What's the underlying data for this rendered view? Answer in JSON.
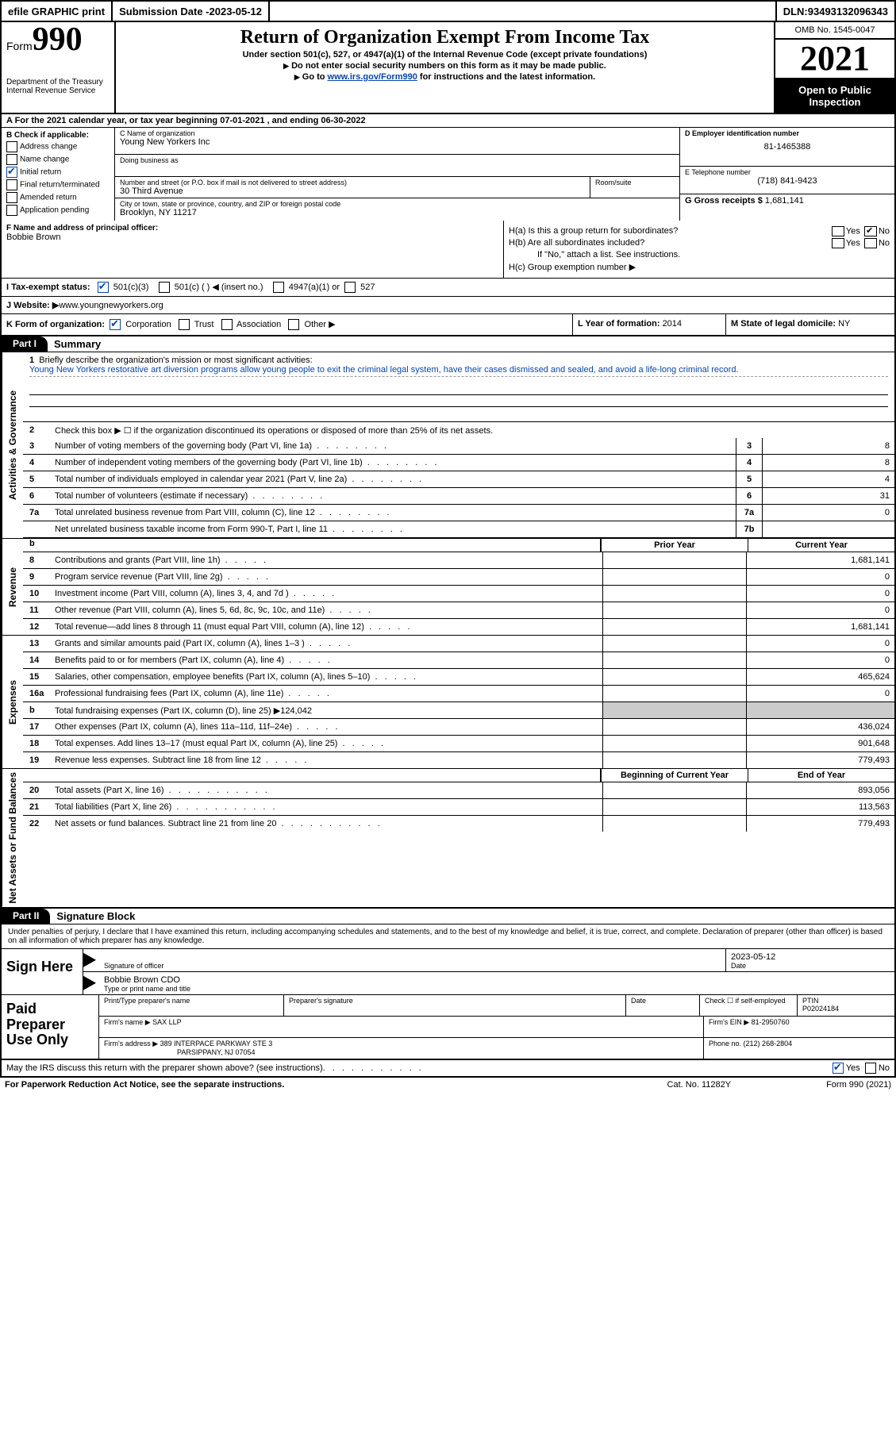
{
  "topbar": {
    "efile": "efile GRAPHIC print",
    "submission_label": "Submission Date - ",
    "submission_date": "2023-05-12",
    "dln_label": "DLN: ",
    "dln": "93493132096343"
  },
  "header": {
    "form_prefix": "Form",
    "form_number": "990",
    "dept": "Department of the Treasury",
    "irs": "Internal Revenue Service",
    "title": "Return of Organization Exempt From Income Tax",
    "subtitle": "Under section 501(c), 527, or 4947(a)(1) of the Internal Revenue Code (except private foundations)",
    "note1": "Do not enter social security numbers on this form as it may be made public.",
    "note2_prefix": "Go to ",
    "note2_link": "www.irs.gov/Form990",
    "note2_suffix": " for instructions and the latest information.",
    "omb": "OMB No. 1545-0047",
    "year": "2021",
    "open": "Open to Public Inspection"
  },
  "sectionA": {
    "text_prefix": "A For the 2021 calendar year, or tax year beginning ",
    "begin": "07-01-2021",
    "mid": "   , and ending ",
    "end": "06-30-2022"
  },
  "colB": {
    "header": "B Check if applicable:",
    "items": [
      "Address change",
      "Name change",
      "Initial return",
      "Final return/terminated",
      "Amended return",
      "Application pending"
    ],
    "checked_index": 2
  },
  "colC": {
    "name_label": "C Name of organization",
    "name": "Young New Yorkers Inc",
    "dba_label": "Doing business as",
    "addr_label": "Number and street (or P.O. box if mail is not delivered to street address)",
    "room_label": "Room/suite",
    "addr": "30 Third Avenue",
    "city_label": "City or town, state or province, country, and ZIP or foreign postal code",
    "city": "Brooklyn, NY  11217"
  },
  "colD": {
    "ein_label": "D Employer identification number",
    "ein": "81-1465388",
    "phone_label": "E Telephone number",
    "phone": "(718) 841-9423",
    "gross_label": "G Gross receipts $ ",
    "gross": "1,681,141"
  },
  "rowF": {
    "label": "F  Name and address of principal officer:",
    "name": "Bobbie Brown"
  },
  "rowH": {
    "ha": "H(a)  Is this a group return for subordinates?",
    "hb": "H(b)  Are all subordinates included?",
    "hb_note": "If \"No,\" attach a list. See instructions.",
    "hc": "H(c)  Group exemption number ▶",
    "yes": "Yes",
    "no": "No"
  },
  "rowI": {
    "label": "I   Tax-exempt status:",
    "opt1": "501(c)(3)",
    "opt2": "501(c) (   ) ◀ (insert no.)",
    "opt3": "4947(a)(1) or",
    "opt4": "527"
  },
  "rowJ": {
    "label": "J   Website: ▶",
    "value": "  www.youngnewyorkers.org"
  },
  "rowK": {
    "label": "K Form of organization:",
    "opts": [
      "Corporation",
      "Trust",
      "Association",
      "Other ▶"
    ],
    "L_label": "L Year of formation: ",
    "L_val": "2014",
    "M_label": "M State of legal domicile: ",
    "M_val": "NY"
  },
  "part1": {
    "header": "Part I",
    "title": "Summary",
    "side_labels": [
      "Activities & Governance",
      "Revenue",
      "Expenses",
      "Net Assets or Fund Balances"
    ],
    "line1_label": "Briefly describe the organization's mission or most significant activities:",
    "line1_text": "Young New Yorkers restorative art diversion programs allow young people to exit the criminal legal system, have their cases dismissed and sealed, and avoid a life-long criminal record.",
    "line2": "Check this box ▶ ☐  if the organization discontinued its operations or disposed of more than 25% of its net assets.",
    "rows_gov": [
      {
        "n": "3",
        "d": "Number of voting members of the governing body (Part VI, line 1a)",
        "box": "3",
        "val": "8"
      },
      {
        "n": "4",
        "d": "Number of independent voting members of the governing body (Part VI, line 1b)",
        "box": "4",
        "val": "8"
      },
      {
        "n": "5",
        "d": "Total number of individuals employed in calendar year 2021 (Part V, line 2a)",
        "box": "5",
        "val": "4"
      },
      {
        "n": "6",
        "d": "Total number of volunteers (estimate if necessary)",
        "box": "6",
        "val": "31"
      },
      {
        "n": "7a",
        "d": "Total unrelated business revenue from Part VIII, column (C), line 12",
        "box": "7a",
        "val": "0"
      },
      {
        "n": "",
        "d": "Net unrelated business taxable income from Form 990-T, Part I, line 11",
        "box": "7b",
        "val": ""
      }
    ],
    "year_prior": "Prior Year",
    "year_current": "Current Year",
    "rows_rev": [
      {
        "n": "8",
        "d": "Contributions and grants (Part VIII, line 1h)",
        "cur": "1,681,141"
      },
      {
        "n": "9",
        "d": "Program service revenue (Part VIII, line 2g)",
        "cur": "0"
      },
      {
        "n": "10",
        "d": "Investment income (Part VIII, column (A), lines 3, 4, and 7d )",
        "cur": "0"
      },
      {
        "n": "11",
        "d": "Other revenue (Part VIII, column (A), lines 5, 6d, 8c, 9c, 10c, and 11e)",
        "cur": "0"
      },
      {
        "n": "12",
        "d": "Total revenue—add lines 8 through 11 (must equal Part VIII, column (A), line 12)",
        "cur": "1,681,141"
      }
    ],
    "rows_exp": [
      {
        "n": "13",
        "d": "Grants and similar amounts paid (Part IX, column (A), lines 1–3 )",
        "cur": "0"
      },
      {
        "n": "14",
        "d": "Benefits paid to or for members (Part IX, column (A), line 4)",
        "cur": "0"
      },
      {
        "n": "15",
        "d": "Salaries, other compensation, employee benefits (Part IX, column (A), lines 5–10)",
        "cur": "465,624"
      },
      {
        "n": "16a",
        "d": "Professional fundraising fees (Part IX, column (A), line 11e)",
        "cur": "0"
      },
      {
        "n": "b",
        "d": "Total fundraising expenses (Part IX, column (D), line 25) ▶124,042",
        "grey": true
      },
      {
        "n": "17",
        "d": "Other expenses (Part IX, column (A), lines 11a–11d, 11f–24e)",
        "cur": "436,024"
      },
      {
        "n": "18",
        "d": "Total expenses. Add lines 13–17 (must equal Part IX, column (A), line 25)",
        "cur": "901,648"
      },
      {
        "n": "19",
        "d": "Revenue less expenses. Subtract line 18 from line 12",
        "cur": "779,493"
      }
    ],
    "year_begin": "Beginning of Current Year",
    "year_end": "End of Year",
    "rows_net": [
      {
        "n": "20",
        "d": "Total assets (Part X, line 16)",
        "cur": "893,056"
      },
      {
        "n": "21",
        "d": "Total liabilities (Part X, line 26)",
        "cur": "113,563"
      },
      {
        "n": "22",
        "d": "Net assets or fund balances. Subtract line 21 from line 20",
        "cur": "779,493"
      }
    ]
  },
  "part2": {
    "header": "Part II",
    "title": "Signature Block",
    "penalties": "Under penalties of perjury, I declare that I have examined this return, including accompanying schedules and statements, and to the best of my knowledge and belief, it is true, correct, and complete. Declaration of preparer (other than officer) is based on all information of which preparer has any knowledge.",
    "sign_here": "Sign Here",
    "sig_officer": "Signature of officer",
    "sig_date": "Date",
    "sig_date_val": "2023-05-12",
    "name_title_label": "Type or print name and title",
    "name_title": "Bobbie Brown  CDO",
    "paid": "Paid Preparer Use Only",
    "prep_name_label": "Print/Type preparer's name",
    "prep_sig_label": "Preparer's signature",
    "date_label": "Date",
    "check_label": "Check ☐ if self-employed",
    "ptin_label": "PTIN",
    "ptin": "P02024184",
    "firm_name_label": "Firm's name    ▶ ",
    "firm_name": "SAX LLP",
    "firm_ein_label": "Firm's EIN ▶ ",
    "firm_ein": "81-2950760",
    "firm_addr_label": "Firm's address ▶ ",
    "firm_addr1": "389 INTERPACE PARKWAY STE 3",
    "firm_addr2": "PARSIPPANY, NJ  07054",
    "firm_phone_label": "Phone no. ",
    "firm_phone": "(212) 268-2804",
    "discuss": "May the IRS discuss this return with the preparer shown above? (see instructions)",
    "paperwork": "For Paperwork Reduction Act Notice, see the separate instructions.",
    "catno": "Cat. No. 11282Y",
    "formfoot": "Form 990 (2021)"
  }
}
